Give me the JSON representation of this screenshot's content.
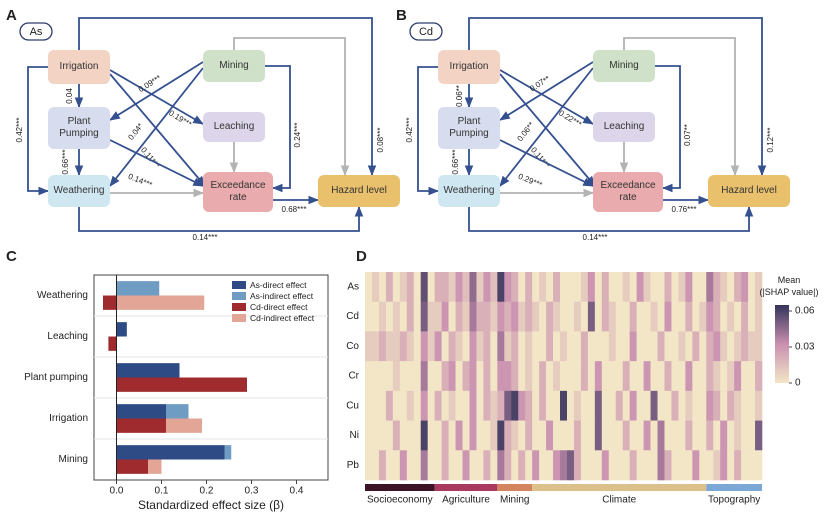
{
  "diagrams": [
    {
      "letter": "A",
      "tag": "As",
      "nodes": [
        {
          "label": "Irrigation",
          "color": "#f2d3c4"
        },
        {
          "label": "Mining",
          "color": "#cfe1c9"
        },
        {
          "label": "Plant Pumping",
          "color": "#d7ddee"
        },
        {
          "label": "Leaching",
          "color": "#ddd6ea"
        },
        {
          "label": "Weathering",
          "color": "#cfe7f1"
        },
        {
          "label": "Exceedance rate",
          "color": "#e9abad"
        },
        {
          "label": "Hazard level",
          "color": "#e9c16c"
        }
      ],
      "edges": [
        {
          "from": 0,
          "to": 2,
          "label": "0.04",
          "color": "#34508f"
        },
        {
          "from": 0,
          "to": 3,
          "label": "0.19***",
          "color": "#34508f"
        },
        {
          "from": 0,
          "to": 5,
          "label": "0.11***",
          "color": "#34508f"
        },
        {
          "from": 0,
          "to": 4,
          "label": "0.42***",
          "color": "#34508f"
        },
        {
          "from": 0,
          "to": 6,
          "label": "0.08***",
          "color": "#34508f"
        },
        {
          "from": 1,
          "to": 2,
          "label": "0.09***",
          "color": "#34508f"
        },
        {
          "from": 1,
          "to": 4,
          "label": "0.04*",
          "color": "#34508f"
        },
        {
          "from": 1,
          "to": 6,
          "color": "#b3b3b3"
        },
        {
          "from": 1,
          "to": 5,
          "label": "0.24***",
          "color": "#34508f"
        },
        {
          "from": 3,
          "to": 5,
          "color": "#b3b3b3"
        },
        {
          "from": 2,
          "to": 4,
          "label": "0.66***",
          "color": "#34508f"
        },
        {
          "from": 2,
          "to": 5,
          "label": "0.14***",
          "color": "#34508f"
        },
        {
          "from": 4,
          "to": 5,
          "color": "#b3b3b3"
        },
        {
          "from": 5,
          "to": 6,
          "label": "0.68***",
          "color": "#34508f"
        },
        {
          "from": 4,
          "to": 6,
          "label": "0.14***",
          "color": "#34508f"
        }
      ]
    },
    {
      "letter": "B",
      "tag": "Cd",
      "nodes": [
        {
          "label": "Irrigation",
          "color": "#f2d3c4"
        },
        {
          "label": "Mining",
          "color": "#cfe1c9"
        },
        {
          "label": "Plant Pumping",
          "color": "#d7ddee"
        },
        {
          "label": "Leaching",
          "color": "#ddd6ea"
        },
        {
          "label": "Weathering",
          "color": "#cfe7f1"
        },
        {
          "label": "Exceedance rate",
          "color": "#e9abad"
        },
        {
          "label": "Hazard level",
          "color": "#e9c16c"
        }
      ],
      "edges": [
        {
          "from": 0,
          "to": 2,
          "label": "0.06**",
          "color": "#34508f"
        },
        {
          "from": 0,
          "to": 3,
          "label": "0.22***",
          "color": "#34508f"
        },
        {
          "from": 0,
          "to": 5,
          "label": "0.11***",
          "color": "#34508f"
        },
        {
          "from": 0,
          "to": 4,
          "label": "0.42***",
          "color": "#34508f"
        },
        {
          "from": 0,
          "to": 6,
          "label": "0.12***",
          "color": "#34508f"
        },
        {
          "from": 1,
          "to": 2,
          "label": "0.07**",
          "color": "#34508f"
        },
        {
          "from": 1,
          "to": 4,
          "label": "0.06**",
          "color": "#34508f"
        },
        {
          "from": 1,
          "to": 6,
          "color": "#b3b3b3"
        },
        {
          "from": 1,
          "to": 5,
          "label": "0.07**",
          "color": "#34508f"
        },
        {
          "from": 3,
          "to": 5,
          "color": "#b3b3b3"
        },
        {
          "from": 2,
          "to": 4,
          "label": "0.66***",
          "color": "#34508f"
        },
        {
          "from": 2,
          "to": 5,
          "label": "0.29***",
          "color": "#34508f"
        },
        {
          "from": 4,
          "to": 5,
          "color": "#b3b3b3"
        },
        {
          "from": 5,
          "to": 6,
          "label": "0.76***",
          "color": "#34508f"
        },
        {
          "from": 4,
          "to": 6,
          "label": "0.14***",
          "color": "#34508f"
        }
      ]
    }
  ],
  "chart_data": [
    {
      "type": "hbar",
      "letter": "C",
      "categories": [
        "Weathering",
        "Leaching",
        "Plant pumping",
        "Irrigation",
        "Mining"
      ],
      "series": [
        {
          "name": "As-direct effect",
          "color": "#2f4b86",
          "values": [
            0,
            0.023,
            0.14,
            0.11,
            0.24
          ]
        },
        {
          "name": "As-indirect effect",
          "color": "#6f9cc3",
          "values": [
            0.095,
            0,
            0,
            0.05,
            0.015
          ]
        },
        {
          "name": "Cd-direct effect",
          "color": "#9f2b2f",
          "values": [
            -0.03,
            -0.018,
            0.29,
            0.11,
            0.07
          ]
        },
        {
          "name": "Cd-indirect effect",
          "color": "#e3a596",
          "values": [
            0.195,
            0,
            0,
            0.08,
            0.03
          ]
        }
      ],
      "xlim": [
        -0.05,
        0.47
      ],
      "xticks": [
        {
          "value": 0,
          "label": "0.0"
        },
        0.1,
        0.2,
        0.3,
        0.4
      ],
      "xlabel": "Standardized effect size (β)",
      "legend": "upper right"
    },
    {
      "type": "heatmap",
      "letter": "D",
      "rows": [
        "As",
        "Cd",
        "Co",
        "Cr",
        "Cu",
        "Ni",
        "Pb"
      ],
      "values": [
        [
          0,
          0.01,
          0,
          0.02,
          0,
          0.01,
          0.02,
          0,
          0.055,
          0,
          0.02,
          0.02,
          0.01,
          0.03,
          0.015,
          0.045,
          0.01,
          0.03,
          0.015,
          0.06,
          0.03,
          0.02,
          0,
          0.02,
          0,
          0.01,
          0,
          0.02,
          0,
          0,
          0,
          0.01,
          0.03,
          0,
          0.02,
          0,
          0,
          0.01,
          0,
          0.03,
          0.01,
          0,
          0,
          0.02,
          0,
          0.01,
          0.03,
          0,
          0,
          0.04,
          0.02,
          0.01,
          0,
          0.02,
          0.03,
          0,
          0.01
        ],
        [
          0,
          0,
          0.01,
          0,
          0.01,
          0,
          0.02,
          0,
          0.05,
          0.01,
          0.01,
          0.03,
          0,
          0.02,
          0.01,
          0.04,
          0.02,
          0.02,
          0.01,
          0.03,
          0.02,
          0.03,
          0.01,
          0.02,
          0.01,
          0,
          0.02,
          0.01,
          0,
          0,
          0.01,
          0,
          0.05,
          0,
          0.02,
          0.01,
          0,
          0,
          0.02,
          0,
          0,
          0.01,
          0,
          0.03,
          0,
          0,
          0.02,
          0,
          0.01,
          0.03,
          0.02,
          0,
          0.01,
          0,
          0.02,
          0,
          0.01
        ],
        [
          0.01,
          0.01,
          0.02,
          0.01,
          0.01,
          0.02,
          0.01,
          0,
          0.03,
          0.01,
          0.03,
          0,
          0.02,
          0.01,
          0,
          0.03,
          0.01,
          0.02,
          0,
          0.04,
          0.01,
          0.02,
          0,
          0.01,
          0,
          0,
          0.02,
          0,
          0.01,
          0,
          0,
          0.02,
          0,
          0,
          0,
          0.01,
          0,
          0,
          0.03,
          0,
          0,
          0,
          0.02,
          0,
          0,
          0.01,
          0,
          0.02,
          0,
          0.02,
          0.03,
          0.01,
          0,
          0.01,
          0.02,
          0.01,
          0.01
        ],
        [
          0,
          0,
          0,
          0,
          0.01,
          0,
          0,
          0,
          0.04,
          0,
          0,
          0.02,
          0.03,
          0,
          0.02,
          0.03,
          0,
          0.02,
          0,
          0.03,
          0.03,
          0.02,
          0,
          0.01,
          0,
          0.02,
          0,
          0.01,
          0,
          0,
          0,
          0.02,
          0,
          0.03,
          0,
          0,
          0,
          0.02,
          0,
          0,
          0.03,
          0,
          0,
          0.02,
          0,
          0,
          0.03,
          0,
          0,
          0.02,
          0.01,
          0,
          0.01,
          0.03,
          0,
          0,
          0.02
        ],
        [
          0,
          0,
          0,
          0.02,
          0,
          0,
          0.01,
          0,
          0.03,
          0,
          0.02,
          0,
          0.01,
          0,
          0,
          0.03,
          0,
          0.02,
          0.01,
          0.02,
          0.05,
          0.06,
          0.03,
          0.02,
          0,
          0.02,
          0,
          0,
          0.06,
          0,
          0.01,
          0,
          0,
          0.05,
          0,
          0,
          0.02,
          0,
          0.03,
          0,
          0,
          0.05,
          0,
          0,
          0.02,
          0,
          0.01,
          0,
          0,
          0.03,
          0.02,
          0,
          0.02,
          0.01,
          0,
          0,
          0.01
        ],
        [
          0,
          0,
          0,
          0,
          0.02,
          0,
          0,
          0,
          0.06,
          0,
          0,
          0.02,
          0,
          0.03,
          0,
          0.03,
          0,
          0,
          0.01,
          0.06,
          0.02,
          0.01,
          0,
          0.02,
          0,
          0,
          0.03,
          0,
          0,
          0,
          0.02,
          0,
          0,
          0.05,
          0,
          0,
          0,
          0.02,
          0,
          0,
          0.03,
          0,
          0.04,
          0,
          0,
          0,
          0.02,
          0,
          0,
          0.02,
          0,
          0.03,
          0,
          0.01,
          0,
          0,
          0.05
        ],
        [
          0,
          0,
          0.02,
          0,
          0,
          0.03,
          0,
          0,
          0.04,
          0,
          0,
          0.02,
          0,
          0,
          0.03,
          0,
          0,
          0.02,
          0,
          0.04,
          0.02,
          0,
          0.02,
          0,
          0.03,
          0,
          0,
          0.03,
          0.04,
          0.05,
          0.02,
          0,
          0,
          0,
          0.03,
          0,
          0,
          0,
          0.02,
          0,
          0,
          0,
          0.04,
          0.02,
          0,
          0,
          0,
          0.03,
          0,
          0,
          0.01,
          0.03,
          0,
          0.02,
          0,
          0,
          0
        ]
      ],
      "groups": [
        {
          "name": "Socioeconomy",
          "color": "#3d1426",
          "columns": 10
        },
        {
          "name": "Agriculture",
          "color": "#a8395f",
          "columns": 9
        },
        {
          "name": "Mining",
          "color": "#d4855f",
          "columns": 5
        },
        {
          "name": "Climate",
          "color": "#dcc08b",
          "columns": 25
        },
        {
          "name": "Topography",
          "color": "#7ca8d5",
          "columns": 8
        }
      ],
      "colormap": [
        "#f3e6c6",
        "#c98fb0",
        "#34345a"
      ],
      "clim": [
        0,
        0.065
      ],
      "colorbar_ticks": [
        0,
        0.03,
        0.06
      ],
      "colorbar_title": "Mean\n(|SHAP value|)"
    }
  ]
}
